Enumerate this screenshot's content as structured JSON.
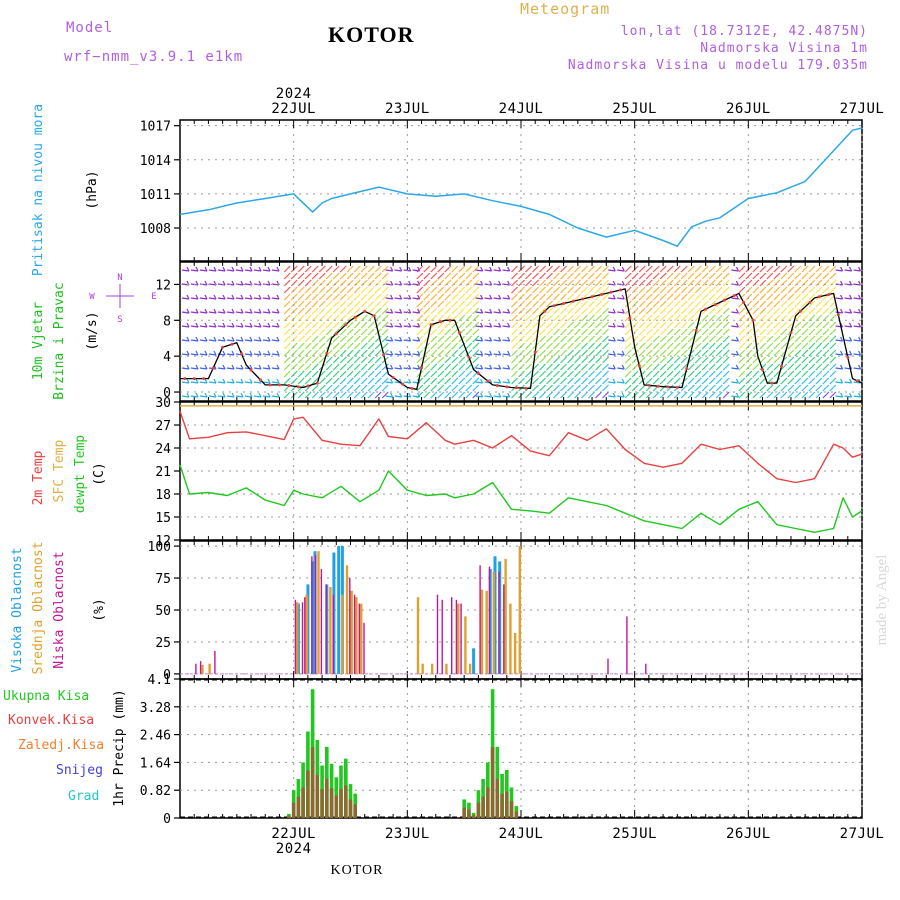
{
  "header": {
    "model_label": "Model",
    "model_name": "wrf−nmm_v3.9.1  e1km",
    "title": "KOTOR",
    "meteogram_label": "Meteogram",
    "lonlat": "lon,lat (18.7312E, 42.4875N)",
    "elevation": "Nadmorska Visina 1m",
    "model_elevation": "Nadmorska Visina u modelu 179.035m"
  },
  "colors": {
    "model": "#b060e0",
    "meteogram": "#e0b050",
    "pressure": "#2aa8e8",
    "temp2m": "#e84040",
    "sfc": "#e0b040",
    "dewpt": "#20c820",
    "wind_axis": "#20c020",
    "compass": "#b040e0",
    "cloud_high": "#20a0e8",
    "cloud_mid": "#e0a030",
    "cloud_low": "#c01898",
    "precip_total": "#20c820",
    "precip_conv": "#e84040",
    "precip_ice": "#f08030",
    "snow": "#4040e0",
    "hail": "#20c8c8"
  },
  "footer": {
    "label": "KOTOR"
  },
  "watermark": "made by Angel",
  "chart_data": {
    "type": "line",
    "x_axis": {
      "year": "2024",
      "dates": [
        "22JUL",
        "23JUL",
        "24JUL",
        "25JUL",
        "26JUL",
        "27JUL"
      ],
      "range_hours": [
        -6,
        138
      ]
    },
    "pressure": {
      "ylabel": "Pritisak na nivou mora",
      "unit": "(hPa)",
      "ticks": [
        1008,
        1011,
        1014,
        1017
      ],
      "ylim": [
        1005.1,
        1017.5
      ],
      "hours": [
        -6,
        0,
        6,
        12,
        18,
        22,
        24,
        26,
        30,
        36,
        42,
        48,
        54,
        60,
        66,
        72,
        78,
        84,
        90,
        96,
        99,
        102,
        105,
        108,
        114,
        120,
        126,
        132,
        136,
        138
      ],
      "values": [
        1009.2,
        1009.6,
        1010.2,
        1010.6,
        1011.0,
        1009.4,
        1010.2,
        1010.6,
        1011.0,
        1011.6,
        1011.0,
        1010.8,
        1011.0,
        1010.4,
        1009.9,
        1009.2,
        1008.0,
        1007.2,
        1007.8,
        1006.9,
        1006.4,
        1008.1,
        1008.6,
        1008.9,
        1010.6,
        1011.1,
        1012.1,
        1014.8,
        1016.6,
        1016.8
      ]
    },
    "wind": {
      "ylabel": "10m Vjetar Brzina i Pravac",
      "unit": "(m/s)",
      "compass": [
        "N",
        "W",
        "E",
        "S"
      ],
      "ticks": [
        0,
        4,
        8,
        12
      ],
      "ylim": [
        -1,
        14.5
      ],
      "hours": [
        -6,
        0,
        3,
        6,
        8,
        12,
        16,
        20,
        23,
        26,
        30,
        33,
        35,
        38,
        42,
        44,
        47,
        50,
        52,
        56,
        60,
        64,
        68,
        70,
        72,
        76,
        80,
        84,
        88,
        90,
        92,
        96,
        100,
        104,
        108,
        112,
        115,
        116,
        118,
        120,
        124,
        128,
        132,
        136,
        138
      ],
      "speed": [
        1.5,
        1.5,
        5.0,
        5.5,
        3.0,
        0.8,
        0.8,
        0.5,
        1.0,
        6.0,
        8.0,
        9.0,
        8.5,
        2.0,
        0.5,
        0.3,
        7.5,
        8.0,
        8.0,
        2.5,
        0.8,
        0.5,
        0.4,
        8.5,
        9.5,
        10.0,
        10.5,
        11.0,
        11.5,
        5.0,
        0.8,
        0.6,
        0.5,
        9.0,
        10.0,
        11.0,
        8.0,
        4.0,
        1.0,
        1.0,
        8.5,
        10.5,
        11.0,
        1.5,
        1.0
      ]
    },
    "temperature": {
      "ylabels": [
        "2m Temp",
        "SFC Temp",
        "dewpt Temp"
      ],
      "unit": "(C)",
      "ticks": [
        12,
        15,
        18,
        21,
        24,
        27,
        30
      ],
      "ylim": [
        12,
        30
      ],
      "sfc_value": 29.5,
      "hours": [
        -6,
        -4,
        0,
        4,
        8,
        12,
        16,
        18,
        20,
        24,
        28,
        32,
        36,
        38,
        42,
        46,
        50,
        52,
        56,
        60,
        64,
        68,
        72,
        76,
        80,
        84,
        88,
        92,
        96,
        100,
        104,
        108,
        112,
        116,
        120,
        124,
        128,
        132,
        134,
        136,
        138
      ],
      "t2m": [
        28.8,
        25.2,
        25.4,
        26.0,
        26.1,
        25.6,
        25.1,
        27.8,
        28.0,
        25.0,
        24.5,
        24.3,
        27.8,
        25.5,
        25.2,
        27.3,
        25.0,
        24.5,
        25.0,
        24.0,
        25.6,
        23.6,
        23.0,
        26.0,
        25.0,
        26.5,
        23.8,
        22.0,
        21.5,
        22.0,
        24.5,
        23.8,
        24.3,
        22.0,
        20.0,
        19.5,
        20.0,
        24.5,
        24.0,
        22.8,
        23.2
      ],
      "dewpt": [
        21.8,
        18.0,
        18.2,
        17.8,
        18.8,
        17.2,
        16.5,
        18.5,
        18.0,
        17.5,
        19.0,
        17.0,
        18.5,
        21.0,
        18.5,
        17.8,
        18.0,
        17.5,
        18.0,
        19.5,
        16.0,
        15.8,
        15.5,
        17.5,
        17.0,
        16.5,
        15.5,
        14.5,
        14.0,
        13.5,
        15.5,
        14.0,
        16.0,
        17.0,
        14.0,
        13.5,
        13.0,
        13.5,
        17.5,
        15.0,
        15.8
      ]
    },
    "clouds": {
      "ylabels": [
        "Visoka Oblacnost",
        "Srednja Oblacnost",
        "Niska Oblacnost"
      ],
      "unit": "(%)",
      "ticks": [
        0,
        25,
        50,
        75,
        100
      ],
      "ylim": [
        0,
        100
      ],
      "high": [
        [
          19,
          55
        ],
        [
          21,
          70
        ],
        [
          22,
          88
        ],
        [
          22.5,
          96
        ],
        [
          25,
          70
        ],
        [
          26.5,
          95
        ],
        [
          27.5,
          100
        ],
        [
          28.3,
          100
        ],
        [
          56,
          20
        ],
        [
          59.5,
          82
        ],
        [
          60.5,
          92
        ],
        [
          61.5,
          88
        ]
      ],
      "mid": [
        [
          -1.5,
          7
        ],
        [
          0,
          8
        ],
        [
          18.5,
          56
        ],
        [
          20.5,
          62
        ],
        [
          23,
          96
        ],
        [
          25.5,
          68
        ],
        [
          28,
          62
        ],
        [
          29,
          85
        ],
        [
          30,
          65
        ],
        [
          31,
          60
        ],
        [
          32,
          55
        ],
        [
          44,
          60
        ],
        [
          45,
          8
        ],
        [
          47,
          8
        ],
        [
          50,
          8
        ],
        [
          52.5,
          55
        ],
        [
          54,
          45
        ],
        [
          55,
          8
        ],
        [
          57.5,
          66
        ],
        [
          58.5,
          65
        ],
        [
          60,
          80
        ],
        [
          62.5,
          90
        ],
        [
          63.5,
          55
        ],
        [
          64.5,
          32
        ],
        [
          65.5,
          100
        ]
      ],
      "low": [
        [
          -3,
          8
        ],
        [
          -2,
          10
        ],
        [
          1,
          18
        ],
        [
          18,
          58
        ],
        [
          19.5,
          56
        ],
        [
          20,
          60
        ],
        [
          21.5,
          92
        ],
        [
          22.3,
          93
        ],
        [
          23.5,
          82
        ],
        [
          24.5,
          70
        ],
        [
          26,
          62
        ],
        [
          29.5,
          75
        ],
        [
          30.5,
          62
        ],
        [
          31.5,
          55
        ],
        [
          32.5,
          40
        ],
        [
          48,
          62
        ],
        [
          49,
          58
        ],
        [
          51,
          60
        ],
        [
          52,
          58
        ],
        [
          53,
          55
        ],
        [
          57,
          85
        ],
        [
          59,
          84
        ],
        [
          61,
          80
        ],
        [
          62,
          70
        ],
        [
          84,
          12
        ],
        [
          88,
          45
        ],
        [
          92,
          8
        ]
      ]
    },
    "precip": {
      "ylabels": [
        "Ukupna Kisa",
        "Konvek.Kisa",
        "Zaledj.Kisa",
        "Snijeg",
        "Grad"
      ],
      "axis_label": "1hr Precip",
      "unit": "(mm)",
      "ticks": [
        "0",
        "0.82",
        "1.64",
        "2.46",
        "3.28",
        "4.1"
      ],
      "ylim": [
        0,
        4.1
      ],
      "bars": [
        [
          17,
          0.12
        ],
        [
          18,
          0.82
        ],
        [
          19,
          1.15
        ],
        [
          20,
          1.64
        ],
        [
          21,
          2.55
        ],
        [
          22,
          3.8
        ],
        [
          23,
          2.3
        ],
        [
          24,
          1.55
        ],
        [
          25,
          2.1
        ],
        [
          26,
          1.6
        ],
        [
          27,
          1.2
        ],
        [
          28,
          1.55
        ],
        [
          29,
          1.75
        ],
        [
          30,
          1.0
        ],
        [
          31,
          0.72
        ],
        [
          54,
          0.55
        ],
        [
          55,
          0.45
        ],
        [
          56,
          0.15
        ],
        [
          57,
          0.82
        ],
        [
          58,
          1.15
        ],
        [
          59,
          1.64
        ],
        [
          60,
          3.8
        ],
        [
          61,
          2.1
        ],
        [
          62,
          1.3
        ],
        [
          63,
          1.42
        ],
        [
          64,
          0.9
        ],
        [
          65,
          0.35
        ]
      ],
      "conv_ratio": 0.55
    }
  }
}
